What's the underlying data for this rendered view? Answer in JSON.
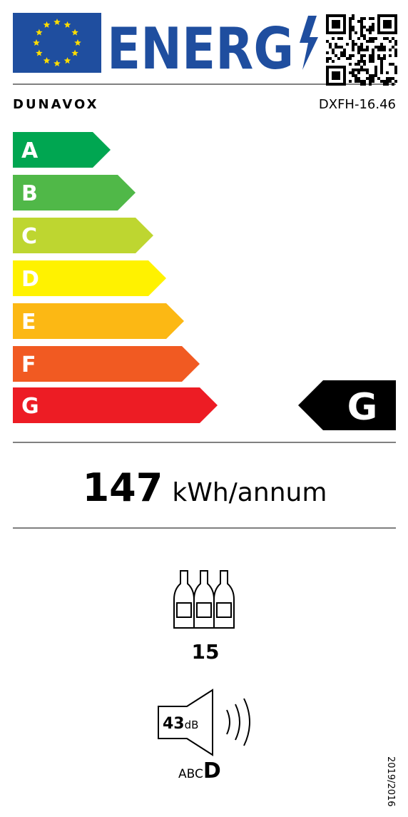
{
  "header": {
    "energy_word": "ENERG"
  },
  "supplier": "DUNAVOX",
  "model": "DXFH-16.46",
  "scale": {
    "classes": [
      "A",
      "B",
      "C",
      "D",
      "E",
      "F",
      "G"
    ]
  },
  "rating": "G",
  "energy_consumption": {
    "value": 147,
    "unit": "kWh/annum"
  },
  "bottles": 15,
  "noise": {
    "value": 43,
    "unit": "dB",
    "classes": "ABC",
    "class": "D"
  },
  "regulation": "2019/2016"
}
